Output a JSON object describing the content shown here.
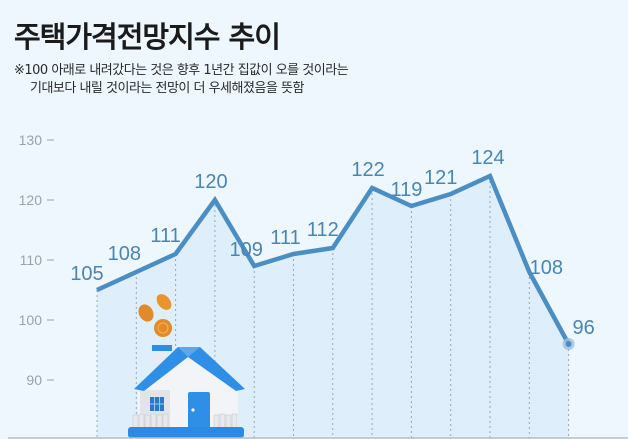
{
  "header": {
    "title": "주택가격전망지수 추이",
    "note_line1": "※100 아래로 내려갔다는 것은 향후 1년간 집값이 오를 것이라는",
    "note_line2": "기대보다 내릴 것이라는 전망이 더 우세해졌음을 뜻함"
  },
  "colors": {
    "background": "#eef6fe",
    "line": "#4a8ec4",
    "area": "#dcecfa",
    "label": "#4a86b3",
    "axis_text": "#9aa3ab",
    "baseline": "#b8bec4"
  },
  "illustration": {
    "icon": "house-with-coins-icon"
  },
  "chart_data": {
    "type": "line",
    "title": "주택가격전망지수 추이",
    "xlabel": "",
    "ylabel": "",
    "x": [
      1,
      2,
      3,
      4,
      5,
      6,
      7,
      8,
      9,
      10,
      11,
      12,
      13
    ],
    "values": [
      105,
      108,
      111,
      120,
      109,
      111,
      112,
      122,
      119,
      121,
      124,
      108,
      96
    ],
    "data_labels": [
      "105",
      "108",
      "111",
      "120",
      "109",
      "111",
      "112",
      "122",
      "119",
      "121",
      "124",
      "108",
      "96"
    ],
    "yticks": [
      "130",
      "120",
      "110",
      "100",
      "90"
    ],
    "ylim": [
      85,
      133
    ],
    "grid": false,
    "legend": null,
    "annotations": [
      "※100 아래로 내려갔다는 것은 향후 1년간 집값이 오를 것이라는 기대보다 내릴 것이라는 전망이 더 우세해졌음을 뜻함"
    ]
  }
}
